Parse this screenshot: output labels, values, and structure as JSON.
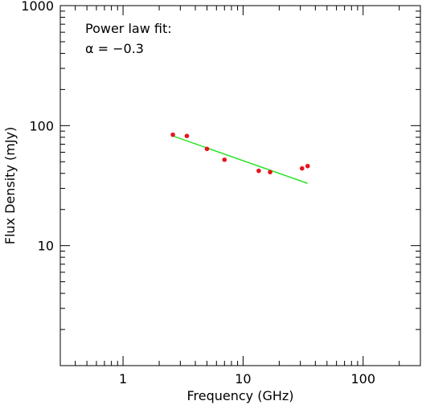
{
  "chart_data": {
    "type": "scatter",
    "xscale": "log",
    "yscale": "log",
    "xlim": [
      0.3,
      300
    ],
    "ylim": [
      1,
      1000
    ],
    "xlabel": "Frequency (GHz)",
    "ylabel": "Flux Density (mJy)",
    "x_ticks": [
      {
        "value": 1,
        "label": "1"
      },
      {
        "value": 10,
        "label": "10"
      },
      {
        "value": 100,
        "label": "100"
      }
    ],
    "y_ticks": [
      {
        "value": 10,
        "label": "10"
      },
      {
        "value": 100,
        "label": "100"
      },
      {
        "value": 1000,
        "label": "1000"
      }
    ],
    "annotations": [
      "Power law fit:",
      "α = −0.3"
    ],
    "grid": false,
    "series": [
      {
        "type": "scatter",
        "color": "#e8141b",
        "x": [
          2.6,
          3.4,
          5.0,
          7.0,
          13.5,
          16.8,
          31.0,
          34.5
        ],
        "y": [
          84,
          82,
          64,
          52,
          42,
          41,
          44,
          46
        ]
      },
      {
        "type": "line",
        "color": "#28e428",
        "x": [
          2.6,
          34.5
        ],
        "y": [
          82,
          33
        ]
      }
    ]
  }
}
